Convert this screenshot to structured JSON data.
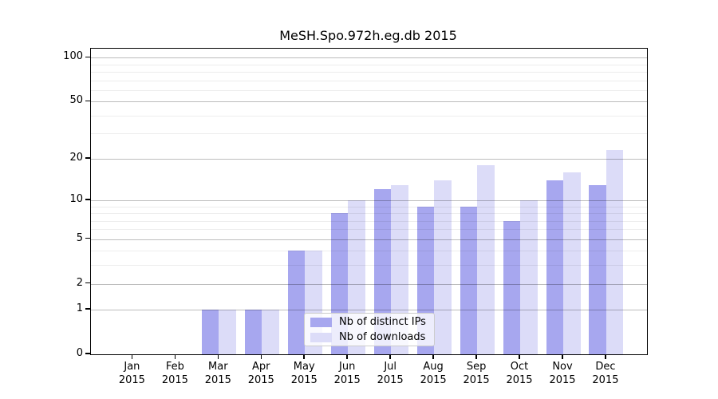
{
  "chart_data": {
    "type": "bar",
    "title": "MeSH.Spo.972h.eg.db 2015",
    "categories": [
      "Jan",
      "Feb",
      "Mar",
      "Apr",
      "May",
      "Jun",
      "Jul",
      "Aug",
      "Sep",
      "Oct",
      "Nov",
      "Dec"
    ],
    "year_label": "2015",
    "series": [
      {
        "name": "Nb of distinct IPs",
        "color": "#a7a7ef",
        "values": [
          0,
          0,
          1,
          1,
          4,
          8,
          12,
          9,
          9,
          7,
          14,
          13
        ]
      },
      {
        "name": "Nb of downloads",
        "color": "#dcdcf8",
        "values": [
          0,
          0,
          1,
          1,
          4,
          10,
          13,
          14,
          18,
          10,
          16,
          23
        ]
      }
    ],
    "y_axis": {
      "scale": "log1p",
      "tick_labels": [
        0,
        1,
        2,
        5,
        10,
        20,
        50,
        100
      ],
      "major_gridlines": [
        1,
        2,
        5,
        10,
        20,
        50,
        100
      ],
      "minor_gridlines": [
        3,
        4,
        6,
        7,
        8,
        9,
        30,
        40,
        60,
        70,
        80,
        90
      ],
      "ylim": [
        0,
        115
      ]
    },
    "grid": true,
    "legend_position": "lower-center"
  },
  "colors": {
    "axis": "#000000",
    "major_grid": "rgba(0,0,0,0.26)",
    "minor_grid": "rgba(0,0,0,0.07)",
    "background": "#ffffff"
  }
}
